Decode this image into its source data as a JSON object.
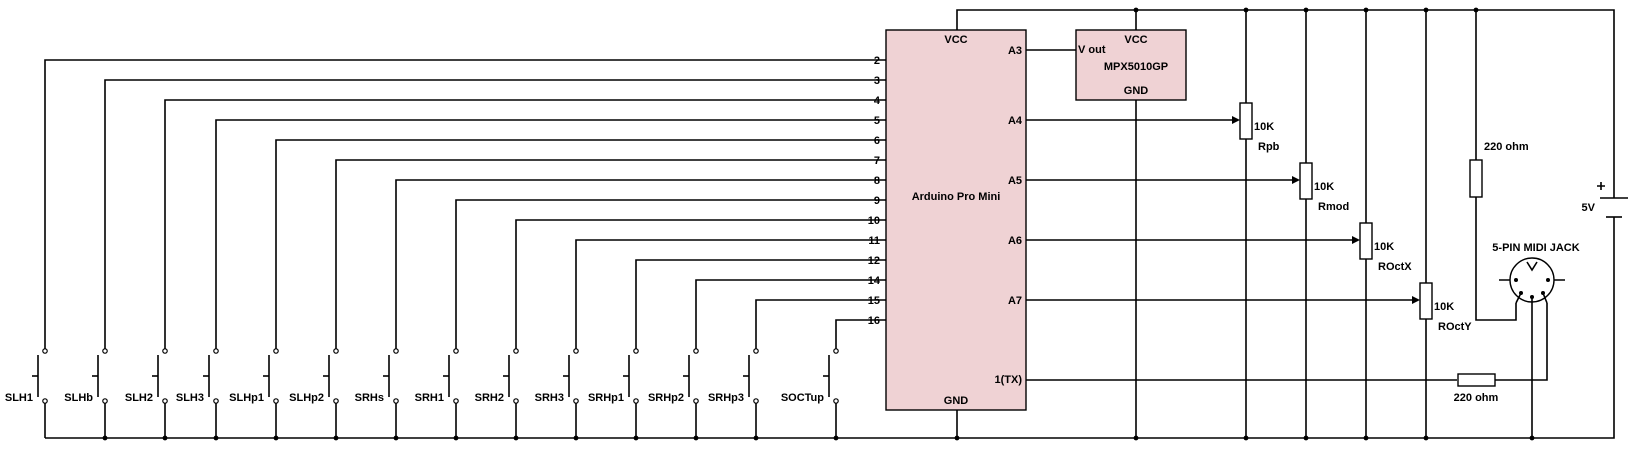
{
  "arduino": {
    "name": "Arduino Pro Mini",
    "vcc": "VCC",
    "gnd": "GND",
    "digital_pins": [
      "2",
      "3",
      "4",
      "5",
      "6",
      "7",
      "8",
      "9",
      "10",
      "11",
      "12",
      "14",
      "15",
      "16"
    ],
    "analog_pins": [
      "A3",
      "A4",
      "A5",
      "A6",
      "A7"
    ],
    "tx_pin": "1(TX)",
    "fill": "#efd2d4"
  },
  "sensor": {
    "name": "MPX5010GP",
    "vcc": "VCC",
    "gnd": "GND",
    "vout": "V out",
    "fill": "#efd2d4"
  },
  "switches": [
    "SLH1",
    "SLHb",
    "SLH2",
    "SLH3",
    "SLHp1",
    "SLHp2",
    "SRHs",
    "SRH1",
    "SRH2",
    "SRH3",
    "SRHp1",
    "SRHp2",
    "SRHp3",
    "SOCTup"
  ],
  "pots": [
    {
      "value": "10K",
      "name": "Rpb"
    },
    {
      "value": "10K",
      "name": "Rmod"
    },
    {
      "value": "10K",
      "name": "ROctX"
    },
    {
      "value": "10K",
      "name": "ROctY"
    }
  ],
  "resistor_top": "220 ohm",
  "resistor_bottom": "220 ohm",
  "midi_jack": "5-PIN MIDI JACK",
  "battery": "5V"
}
